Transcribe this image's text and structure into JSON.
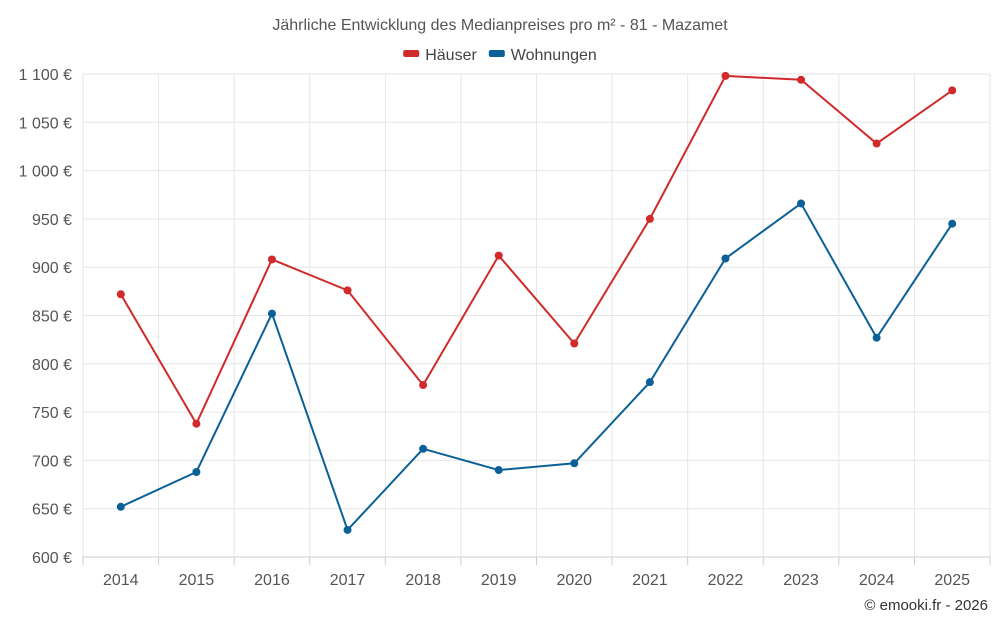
{
  "chart_data": {
    "type": "line",
    "title": "Jährliche Entwicklung des Medianpreises pro m² - 81 - Mazamet",
    "categories": [
      "2014",
      "2015",
      "2016",
      "2017",
      "2018",
      "2019",
      "2020",
      "2021",
      "2022",
      "2023",
      "2024",
      "2025"
    ],
    "series": [
      {
        "name": "Häuser",
        "color": "#d12a2a",
        "values": [
          872,
          738,
          908,
          876,
          778,
          912,
          821,
          950,
          1098,
          1094,
          1028,
          1083
        ]
      },
      {
        "name": "Wohnungen",
        "color": "#0b6197",
        "values": [
          652,
          688,
          852,
          628,
          712,
          690,
          697,
          781,
          909,
          966,
          827,
          945
        ]
      }
    ],
    "ylim": [
      600,
      1100
    ],
    "yticks": [
      600,
      650,
      700,
      750,
      800,
      850,
      900,
      950,
      1000,
      1050,
      1100
    ],
    "ytick_labels": [
      "600 €",
      "650 €",
      "700 €",
      "750 €",
      "800 €",
      "850 €",
      "900 €",
      "950 €",
      "1 000 €",
      "1 050 €",
      "1 100 €"
    ],
    "xlabel": "",
    "ylabel": "",
    "legend_position": "top-center",
    "grid": true
  },
  "credit": "© emooki.fr - 2026"
}
